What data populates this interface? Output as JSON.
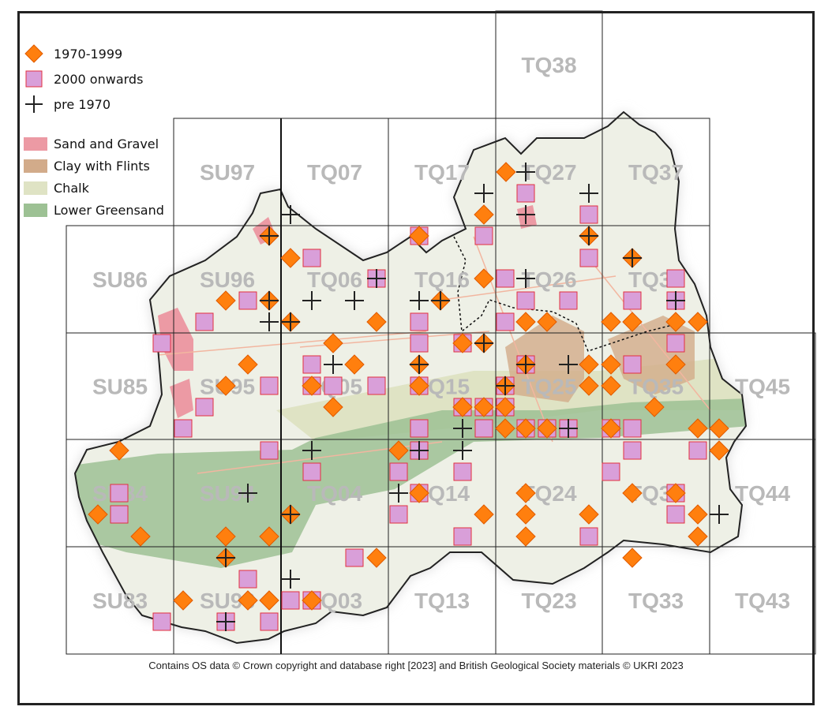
{
  "legend": {
    "markers": [
      {
        "label": "1970-1999",
        "shape": "diamond",
        "color": "#ff7f0e"
      },
      {
        "label": "2000 onwards",
        "shape": "square",
        "color": "#d99fd9"
      },
      {
        "label": "pre 1970",
        "shape": "cross",
        "color": "#222222"
      }
    ],
    "areas": [
      {
        "label": "Sand and Gravel",
        "color": "#ec9aa4"
      },
      {
        "label": "Clay with Flints",
        "color": "#d2ab8a"
      },
      {
        "label": "Chalk",
        "color": "#dfe3c4"
      },
      {
        "label": "Lower Greensand",
        "color": "#9dc194"
      }
    ]
  },
  "grid_labels": [
    [
      "TQ38"
    ],
    [
      "SU97",
      "TQ07",
      "TQ17",
      "TQ27",
      "TQ37"
    ],
    [
      "SU86",
      "SU96",
      "TQ06",
      "TQ16",
      "TQ26",
      "TQ36"
    ],
    [
      "SU85",
      "SU95",
      "TQ05",
      "TQ15",
      "TQ25",
      "TQ35",
      "TQ45"
    ],
    [
      "SU84",
      "SU94",
      "TQ04",
      "TQ14",
      "TQ24",
      "TQ34",
      "TQ44"
    ],
    [
      "SU83",
      "SU93",
      "TQ03",
      "TQ13",
      "TQ23",
      "TQ33",
      "TQ43"
    ]
  ],
  "footer": "Contains OS data  © Crown copyright and database right [2023] and British Geological Society materials © UKRI 2023"
}
